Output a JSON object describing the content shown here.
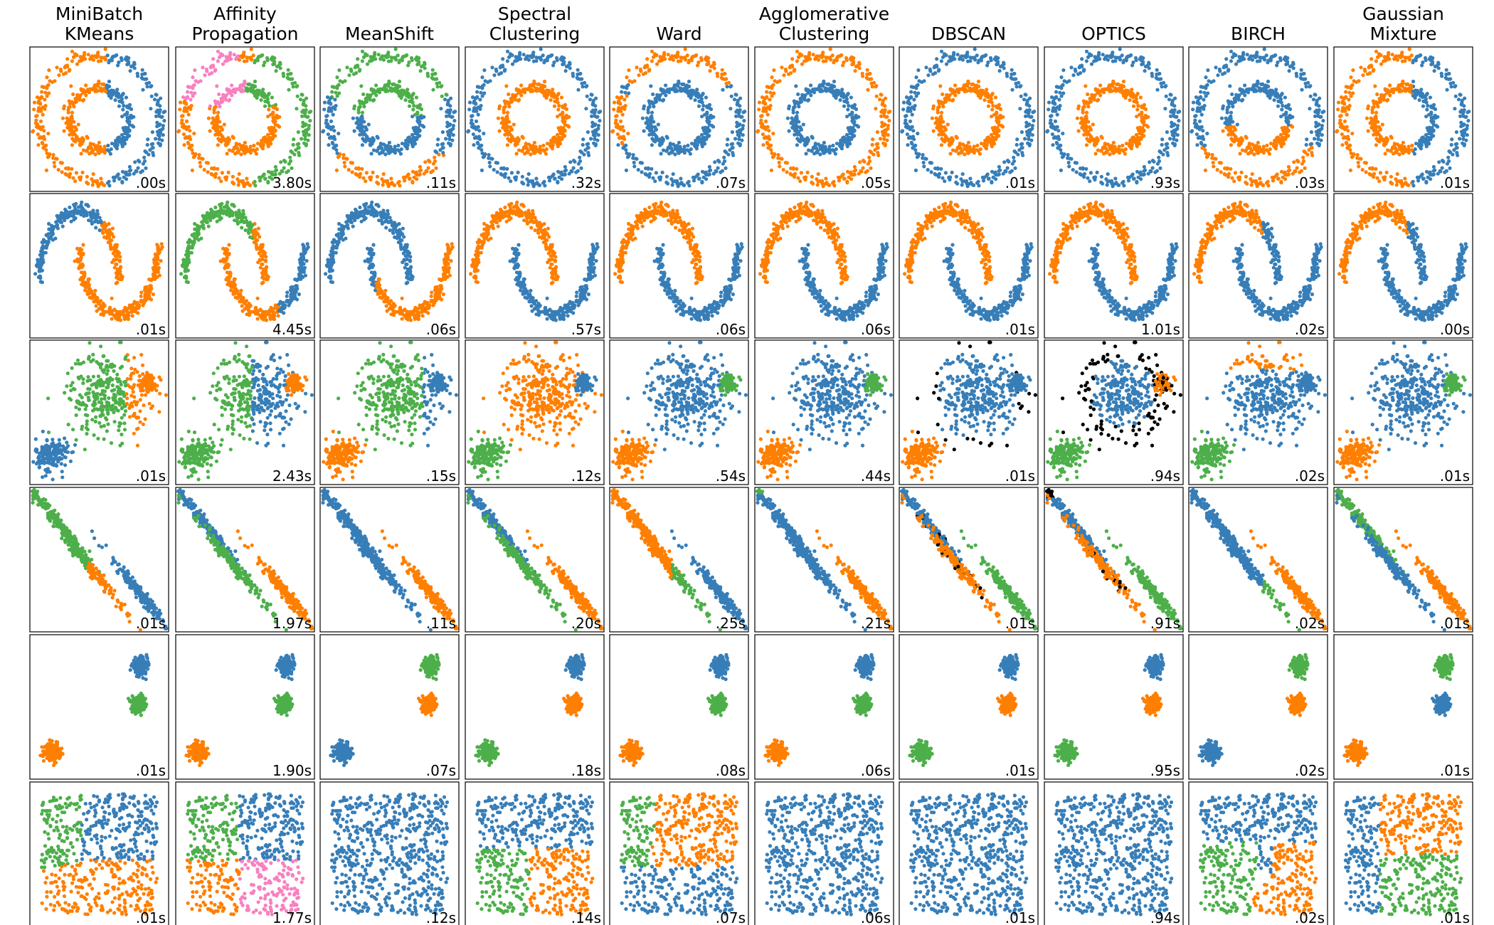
{
  "chart_data": {
    "type": "scatter",
    "title": "",
    "methods": [
      [
        "MiniBatch",
        "KMeans"
      ],
      [
        "Affinity",
        "Propagation"
      ],
      [
        "MeanShift"
      ],
      [
        "Spectral",
        "Clustering"
      ],
      [
        "Ward"
      ],
      [
        "Agglomerative",
        "Clustering"
      ],
      [
        "DBSCAN"
      ],
      [
        "OPTICS"
      ],
      [
        "BIRCH"
      ],
      [
        "Gaussian",
        "Mixture"
      ]
    ],
    "datasets": [
      "noisy_circles",
      "noisy_moons",
      "varied",
      "aniso",
      "blobs",
      "no_structure"
    ],
    "timings": [
      [
        ".00s",
        "3.80s",
        ".11s",
        ".32s",
        ".07s",
        ".05s",
        ".01s",
        ".93s",
        ".03s",
        ".01s"
      ],
      [
        ".01s",
        "4.45s",
        ".06s",
        ".57s",
        ".06s",
        ".06s",
        ".01s",
        "1.01s",
        ".02s",
        ".00s"
      ],
      [
        ".01s",
        "2.43s",
        ".15s",
        ".12s",
        ".54s",
        ".44s",
        ".01s",
        ".94s",
        ".02s",
        ".01s"
      ],
      [
        ".01s",
        "1.97s",
        ".11s",
        ".20s",
        ".25s",
        ".21s",
        ".01s",
        ".91s",
        ".02s",
        ".01s"
      ],
      [
        ".01s",
        "1.90s",
        ".07s",
        ".18s",
        ".08s",
        ".06s",
        ".01s",
        ".95s",
        ".02s",
        ".01s"
      ],
      [
        ".01s",
        "1.77s",
        ".12s",
        ".14s",
        ".07s",
        ".06s",
        ".01s",
        ".94s",
        ".02s",
        ".01s"
      ]
    ],
    "colors": {
      "blue": "#377eb8",
      "orange": "#ff7f00",
      "green": "#4daf4a",
      "pink": "#f781bf",
      "noise": "#000000"
    },
    "points_per_panel": 600,
    "ticks": "none",
    "grid": false,
    "legend": "none"
  }
}
